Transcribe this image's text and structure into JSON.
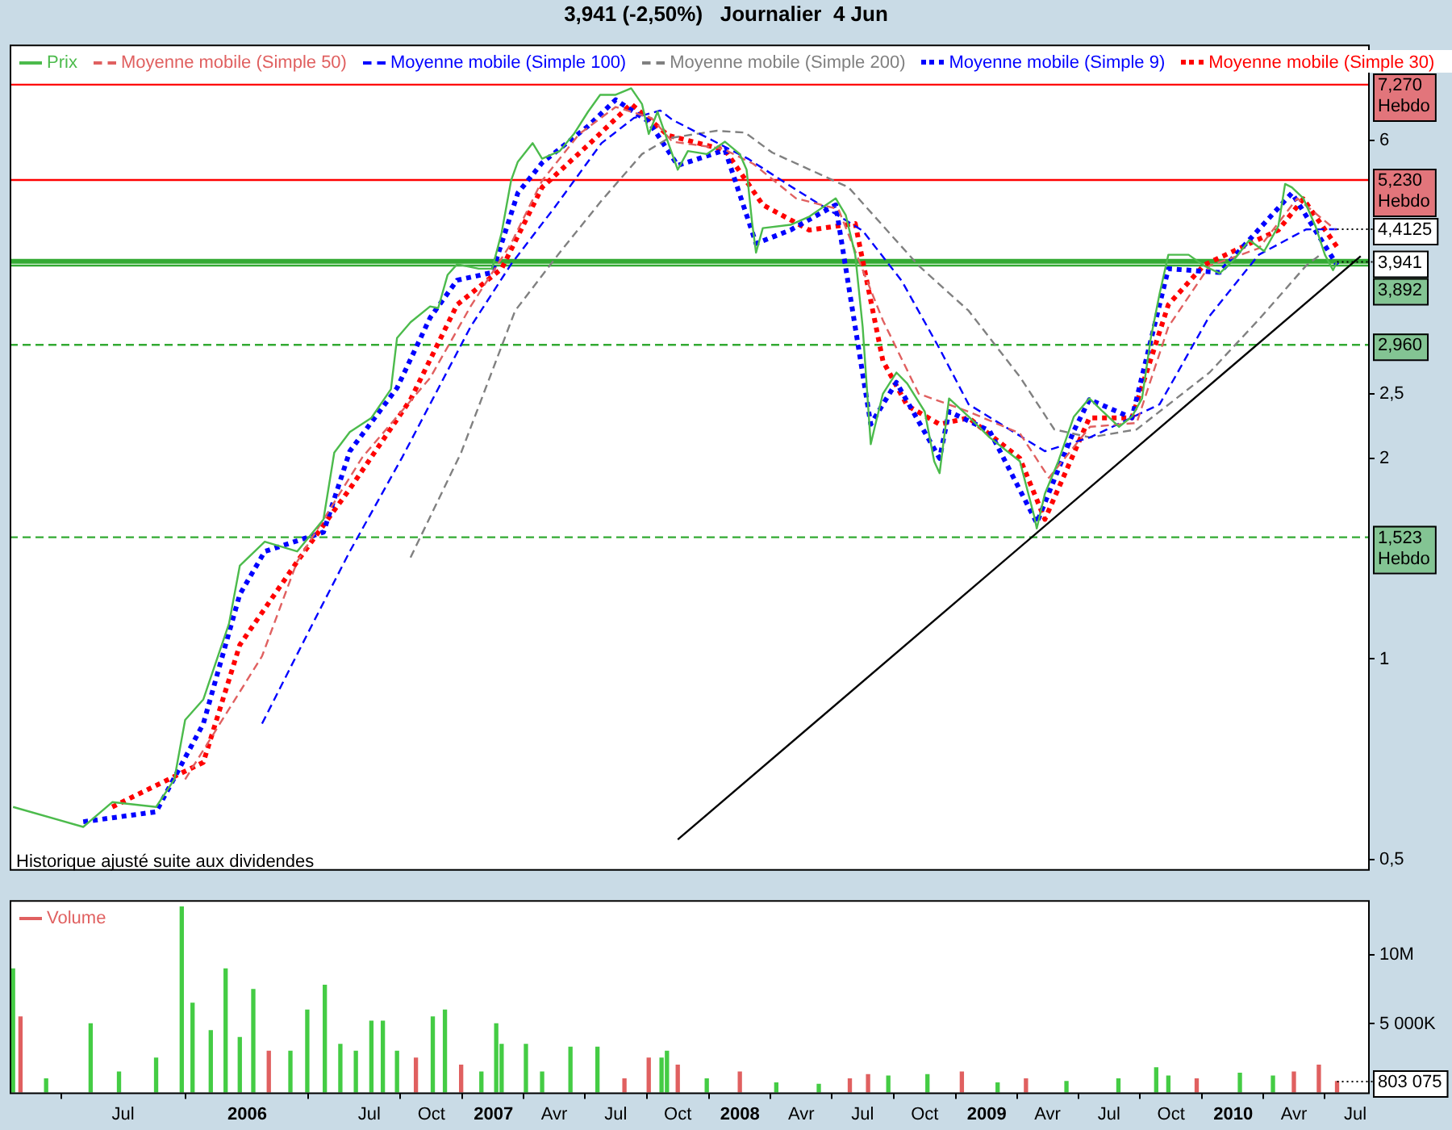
{
  "chart_data": [
    {
      "type": "line",
      "title": "3,941 (-2,50%)   Journalier  4 Jun",
      "log": "y",
      "legend": "top left",
      "tick_labels": "y",
      "xlim": [
        "2005-01-14",
        "2010-07-20"
      ],
      "ylim": [
        0.484,
        8.35
      ],
      "yticks": [
        {
          "value": 0.5,
          "label": "0,5"
        },
        1,
        2,
        {
          "value": 2.5,
          "label": "2,5"
        },
        6
      ],
      "series": [
        {
          "name": "Prix",
          "color": "#4cbb4c",
          "line_style": "solid",
          "x": [
            "2005-01-19",
            "2005-05-03",
            "2005-06-15",
            "2005-08-19",
            "2005-09-15",
            "2005-10-01",
            "2005-10-28",
            "2005-12-05",
            "2005-12-21",
            "2006-01-27",
            "2006-03-16",
            "2006-04-24",
            "2006-05-10",
            "2006-06-02",
            "2006-07-04",
            "2006-08-02",
            "2006-08-11",
            "2006-08-31",
            "2006-09-29",
            "2006-10-11",
            "2006-10-25",
            "2006-11-08",
            "2006-12-10",
            "2006-12-30",
            "2007-01-13",
            "2007-01-27",
            "2007-02-06",
            "2007-02-28",
            "2007-03-14",
            "2007-04-09",
            "2007-04-30",
            "2007-05-21",
            "2007-06-08",
            "2007-07-01",
            "2007-07-24",
            "2007-08-09",
            "2007-08-19",
            "2007-09-01",
            "2007-09-17",
            "2007-10-01",
            "2007-10-16",
            "2007-11-13",
            "2007-12-10",
            "2008-01-01",
            "2008-01-11",
            "2008-01-19",
            "2008-01-25",
            "2008-02-04",
            "2008-03-16",
            "2008-04-13",
            "2008-05-22",
            "2008-06-06",
            "2008-06-20",
            "2008-07-01",
            "2008-07-13",
            "2008-07-19",
            "2008-07-31",
            "2008-08-20",
            "2008-09-05",
            "2008-10-01",
            "2008-10-15",
            "2008-10-23",
            "2008-11-06",
            "2008-12-05",
            "2009-01-05",
            "2009-02-19",
            "2009-03-12",
            "2009-03-16",
            "2009-03-28",
            "2009-04-17",
            "2009-05-10",
            "2009-06-02",
            "2009-06-22",
            "2009-07-16",
            "2009-08-04",
            "2009-08-19",
            "2009-09-01",
            "2009-09-14",
            "2009-09-27",
            "2009-10-27",
            "2009-11-19",
            "2009-12-12",
            "2010-01-03",
            "2010-01-25",
            "2010-02-16",
            "2010-03-09",
            "2010-03-19",
            "2010-03-29",
            "2010-04-15",
            "2010-05-03",
            "2010-05-17",
            "2010-05-29",
            "2010-06-04"
          ],
          "values": [
            0.6,
            0.56,
            0.61,
            0.6,
            0.66,
            0.81,
            0.87,
            1.13,
            1.38,
            1.5,
            1.45,
            1.62,
            2.04,
            2.19,
            2.3,
            2.54,
            3.03,
            3.2,
            3.38,
            3.36,
            3.77,
            3.91,
            3.85,
            3.85,
            4.36,
            5.22,
            5.57,
            5.94,
            5.63,
            5.78,
            6.13,
            6.62,
            7.02,
            7.02,
            7.18,
            6.8,
            6.13,
            6.62,
            5.94,
            5.42,
            5.78,
            5.72,
            5.97,
            5.72,
            5.42,
            4.53,
            4.07,
            4.43,
            4.48,
            4.61,
            4.91,
            4.63,
            4.04,
            3.15,
            2.1,
            2.23,
            2.5,
            2.69,
            2.59,
            2.35,
            1.98,
            1.9,
            2.46,
            2.31,
            2.15,
            1.98,
            1.64,
            1.57,
            1.77,
            1.98,
            2.31,
            2.46,
            2.35,
            2.23,
            2.31,
            2.46,
            3.03,
            3.53,
            4.04,
            4.04,
            3.89,
            3.79,
            3.98,
            4.25,
            4.09,
            4.46,
            5.16,
            5.1,
            4.91,
            4.46,
            4.04,
            3.83,
            3.941
          ]
        },
        {
          "name": "Moyenne mobile (Simple 50)",
          "color": "#e06060",
          "line_style": "dashed",
          "x": [
            "2005-10-01",
            "2006-01-23",
            "2006-03-16",
            "2006-06-21",
            "2006-09-29",
            "2006-11-28",
            "2007-01-27",
            "2007-03-14",
            "2007-05-08",
            "2007-07-01",
            "2007-08-23",
            "2007-09-23",
            "2007-12-06",
            "2008-01-21",
            "2008-03-24",
            "2008-05-26",
            "2008-07-31",
            "2008-09-22",
            "2008-12-05",
            "2009-02-19",
            "2009-04-03",
            "2009-06-03",
            "2009-08-11",
            "2009-09-27",
            "2009-11-27",
            "2010-02-08",
            "2010-04-06",
            "2010-06-01"
          ],
          "values": [
            0.66,
            1.01,
            1.4,
            2.01,
            2.64,
            3.38,
            4.2,
            5.22,
            6.13,
            6.73,
            6.48,
            5.97,
            5.83,
            5.53,
            4.91,
            4.73,
            3.22,
            2.5,
            2.35,
            2.18,
            1.87,
            2.23,
            2.26,
            3.15,
            3.89,
            4.13,
            4.91,
            4.41
          ]
        },
        {
          "name": "Moyenne mobile (Simple 100)",
          "color": "#0000ff",
          "line_style": "dashed",
          "x": [
            "2006-01-23",
            "2006-04-08",
            "2006-06-02",
            "2006-08-19",
            "2006-11-28",
            "2007-01-27",
            "2007-04-03",
            "2007-06-10",
            "2007-07-28",
            "2007-09-05",
            "2007-09-23",
            "2008-01-13",
            "2008-03-24",
            "2008-07-01",
            "2008-08-28",
            "2008-10-23",
            "2008-12-05",
            "2009-03-28",
            "2009-06-03",
            "2009-09-14",
            "2009-11-27",
            "2010-02-08",
            "2010-04-19",
            "2010-06-04"
          ],
          "values": [
            0.8,
            1.13,
            1.45,
            2.01,
            3.15,
            3.91,
            4.78,
            5.94,
            6.48,
            6.65,
            6.44,
            5.63,
            5.06,
            4.39,
            3.69,
            2.92,
            2.41,
            2.05,
            2.15,
            2.41,
            3.27,
            4.04,
            4.41,
            4.4125
          ]
        },
        {
          "name": "Moyenne mobile (Simple 200)",
          "color": "#808080",
          "line_style": "dashed",
          "x": [
            "2006-08-31",
            "2006-11-14",
            "2007-02-02",
            "2007-04-09",
            "2007-06-10",
            "2007-08-09",
            "2007-09-17",
            "2007-11-28",
            "2008-01-09",
            "2008-02-18",
            "2008-06-10",
            "2008-09-22",
            "2008-12-05",
            "2009-02-19",
            "2009-04-11",
            "2009-06-03",
            "2009-08-11",
            "2009-11-27",
            "2010-02-08",
            "2010-04-19",
            "2010-05-10"
          ],
          "values": [
            1.42,
            2.04,
            3.33,
            4.07,
            4.87,
            5.72,
            6.04,
            6.2,
            6.16,
            5.75,
            5.1,
            3.89,
            3.33,
            2.65,
            2.21,
            2.15,
            2.21,
            2.69,
            3.23,
            3.89,
            4.04
          ]
        },
        {
          "name": "Moyenne mobile (Simple 9)",
          "color": "#0000ff",
          "line_style": "dotted",
          "x": [
            "2005-05-03",
            "2005-08-19",
            "2005-10-28",
            "2005-12-21",
            "2006-01-27",
            "2006-04-24",
            "2006-06-02",
            "2006-08-11",
            "2006-09-29",
            "2006-11-08",
            "2006-12-30",
            "2007-02-06",
            "2007-03-14",
            "2007-05-21",
            "2007-07-01",
            "2007-08-19",
            "2007-10-01",
            "2007-12-10",
            "2008-01-25",
            "2008-03-16",
            "2008-05-22",
            "2008-07-13",
            "2008-08-20",
            "2008-10-23",
            "2008-11-06",
            "2009-01-05",
            "2009-03-16",
            "2009-05-10",
            "2009-06-02",
            "2009-08-04",
            "2009-09-27",
            "2009-12-12",
            "2010-03-29",
            "2010-06-04"
          ],
          "values": [
            0.57,
            0.59,
            0.8,
            1.25,
            1.45,
            1.55,
            2.05,
            2.55,
            3.25,
            3.7,
            3.8,
            5.0,
            5.55,
            6.3,
            6.9,
            6.4,
            5.5,
            5.8,
            4.2,
            4.4,
            4.8,
            2.25,
            2.6,
            2.0,
            2.35,
            2.2,
            1.6,
            2.2,
            2.45,
            2.3,
            3.85,
            3.8,
            5.0,
            3.9
          ]
        },
        {
          "name": "Moyenne mobile (Simple 30)",
          "color": "#ff0000",
          "line_style": "dotted",
          "x": [
            "2005-06-15",
            "2005-10-28",
            "2005-12-21",
            "2006-03-16",
            "2006-06-02",
            "2006-08-31",
            "2006-11-08",
            "2007-01-13",
            "2007-03-14",
            "2007-05-21",
            "2007-07-24",
            "2007-09-17",
            "2007-12-10",
            "2008-02-04",
            "2008-04-13",
            "2008-06-20",
            "2008-07-31",
            "2008-09-05",
            "2008-10-23",
            "2008-12-05",
            "2009-02-19",
            "2009-03-28",
            "2009-06-02",
            "2009-08-04",
            "2009-09-27",
            "2009-11-19",
            "2010-03-09",
            "2010-04-15",
            "2010-06-04"
          ],
          "values": [
            0.6,
            0.7,
            1.05,
            1.4,
            1.8,
            2.45,
            3.4,
            3.85,
            5.1,
            5.9,
            6.8,
            6.1,
            5.8,
            4.8,
            4.4,
            4.5,
            2.8,
            2.4,
            2.25,
            2.3,
            2.0,
            1.62,
            2.3,
            2.3,
            3.4,
            3.9,
            4.4,
            4.9,
            4.15
          ]
        },
        {
          "color": "#000000",
          "line_style": "solid",
          "x": [
            "2007-10-01",
            "2010-07-09"
          ],
          "values": [
            0.536,
            4.02
          ]
        }
      ],
      "ref_lines": [
        {
          "axis": "y",
          "value": 7.27,
          "label": "7,270 Hebdo",
          "color": "#ff0000",
          "line_style": "solid"
        },
        {
          "axis": "y",
          "value": 5.23,
          "label": "5,230 Hebdo",
          "color": "#ff0000",
          "line_style": "solid"
        },
        {
          "axis": "y",
          "value": 3.95,
          "label": null,
          "color": "#33aa33",
          "line_style": "solid"
        },
        {
          "axis": "y",
          "value": 3.892,
          "label": "3,892",
          "color": "#33aa33",
          "line_style": "solid"
        },
        {
          "axis": "y",
          "value": 2.96,
          "label": "2,960",
          "color": "#33aa33",
          "line_style": "dashed"
        },
        {
          "axis": "y",
          "value": 1.523,
          "label": "1,523 Hebdo",
          "color": "#33aa33",
          "line_style": "dashed"
        }
      ],
      "annotations": [
        {
          "text": "4,4125",
          "x": "2010-06-04",
          "y": 4.4125
        },
        {
          "text": "3,941",
          "x": "2010-06-04",
          "y": 3.941
        },
        "Historique ajusté suite aux dividendes"
      ]
    },
    {
      "type": "bar",
      "legend": "top left",
      "xlim": [
        "2005-01-14",
        "2010-07-20"
      ],
      "ylim": [
        0,
        14000000
      ],
      "yticks": [
        {
          "value": 5000000,
          "label": "5 000K"
        },
        {
          "value": 10000000,
          "label": "10M"
        }
      ],
      "xticks": [
        {
          "value": "2005-07-01",
          "label": "Jul"
        },
        {
          "value": "2006-01-01",
          "label": "2006"
        },
        {
          "value": "2006-07-01",
          "label": "Jul"
        },
        {
          "value": "2006-10-01",
          "label": "Oct"
        },
        {
          "value": "2007-01-01",
          "label": "2007"
        },
        {
          "value": "2007-04-01",
          "label": "Avr"
        },
        {
          "value": "2007-07-01",
          "label": "Jul"
        },
        {
          "value": "2007-10-01",
          "label": "Oct"
        },
        {
          "value": "2008-01-01",
          "label": "2008"
        },
        {
          "value": "2008-04-01",
          "label": "Avr"
        },
        {
          "value": "2008-07-01",
          "label": "Jul"
        },
        {
          "value": "2008-10-01",
          "label": "Oct"
        },
        {
          "value": "2009-01-01",
          "label": "2009"
        },
        {
          "value": "2009-04-01",
          "label": "Avr"
        },
        {
          "value": "2009-07-01",
          "label": "Jul"
        },
        {
          "value": "2009-10-01",
          "label": "Oct"
        },
        {
          "value": "2010-01-01",
          "label": "2010"
        },
        {
          "value": "2010-04-01",
          "label": "Avr"
        },
        {
          "value": "2010-07-01",
          "label": "Jul"
        }
      ],
      "series": [
        {
          "name": "Volume",
          "color": "#e06060",
          "x": [
            "2005-01-19",
            "2005-01-30",
            "2005-03-09",
            "2005-05-14",
            "2005-06-25",
            "2005-08-19",
            "2005-09-26",
            "2005-10-12",
            "2005-11-08",
            "2005-11-30",
            "2005-12-21",
            "2006-01-10",
            "2006-02-02",
            "2006-03-06",
            "2006-03-31",
            "2006-04-26",
            "2006-05-19",
            "2006-06-11",
            "2006-07-04",
            "2006-07-21",
            "2006-08-11",
            "2006-09-08",
            "2006-10-03",
            "2006-10-21",
            "2006-11-14",
            "2006-12-14",
            "2007-01-05",
            "2007-01-13",
            "2007-02-18",
            "2007-03-14",
            "2007-04-25",
            "2007-06-04",
            "2007-07-14",
            "2007-08-19",
            "2007-09-07",
            "2007-09-15",
            "2007-10-01",
            "2007-11-13",
            "2008-01-01",
            "2008-02-24",
            "2008-04-27",
            "2008-06-12",
            "2008-07-09",
            "2008-08-08",
            "2008-10-05",
            "2008-11-25",
            "2009-01-17",
            "2009-02-28",
            "2009-04-29",
            "2009-07-15",
            "2009-09-09",
            "2009-09-27",
            "2009-11-08",
            "2010-01-11",
            "2010-03-01",
            "2010-04-01",
            "2010-05-08",
            "2010-06-04"
          ],
          "values": [
            9000000,
            5500000,
            1000000,
            5000000,
            1500000,
            2500000,
            13500000,
            6500000,
            4500000,
            9000000,
            4000000,
            7500000,
            3000000,
            3000000,
            6000000,
            7800000,
            3500000,
            3000000,
            5200000,
            5200000,
            3000000,
            2500000,
            5500000,
            6000000,
            2000000,
            1500000,
            5000000,
            3500000,
            3500000,
            1500000,
            3300000,
            3300000,
            1000000,
            2500000,
            2500000,
            3000000,
            2000000,
            1000000,
            1500000,
            700000,
            600000,
            1000000,
            1300000,
            1200000,
            1300000,
            1500000,
            700000,
            1000000,
            800000,
            1000000,
            1800000,
            1200000,
            1000000,
            1400000,
            1200000,
            1500000,
            2000000,
            803075
          ],
          "colors": [
            "#44cc44",
            "#e06060",
            "#44cc44",
            "#44cc44",
            "#44cc44",
            "#44cc44",
            "#44cc44",
            "#44cc44",
            "#44cc44",
            "#44cc44",
            "#44cc44",
            "#44cc44",
            "#e06060",
            "#44cc44",
            "#44cc44",
            "#44cc44",
            "#44cc44",
            "#44cc44",
            "#44cc44",
            "#44cc44",
            "#44cc44",
            "#e06060",
            "#44cc44",
            "#44cc44",
            "#e06060",
            "#44cc44",
            "#44cc44",
            "#44cc44",
            "#44cc44",
            "#44cc44",
            "#44cc44",
            "#44cc44",
            "#e06060",
            "#e06060",
            "#44cc44",
            "#44cc44",
            "#e06060",
            "#44cc44",
            "#e06060",
            "#44cc44",
            "#44cc44",
            "#e06060",
            "#e06060",
            "#44cc44",
            "#44cc44",
            "#e06060",
            "#44cc44",
            "#e06060",
            "#44cc44",
            "#44cc44",
            "#44cc44",
            "#44cc44",
            "#e06060",
            "#44cc44",
            "#44cc44",
            "#e06060",
            "#e06060",
            "#e06060"
          ]
        }
      ],
      "annotations": [
        {
          "text": "803 075",
          "x": "2010-06-04",
          "y": 803075
        }
      ]
    }
  ]
}
